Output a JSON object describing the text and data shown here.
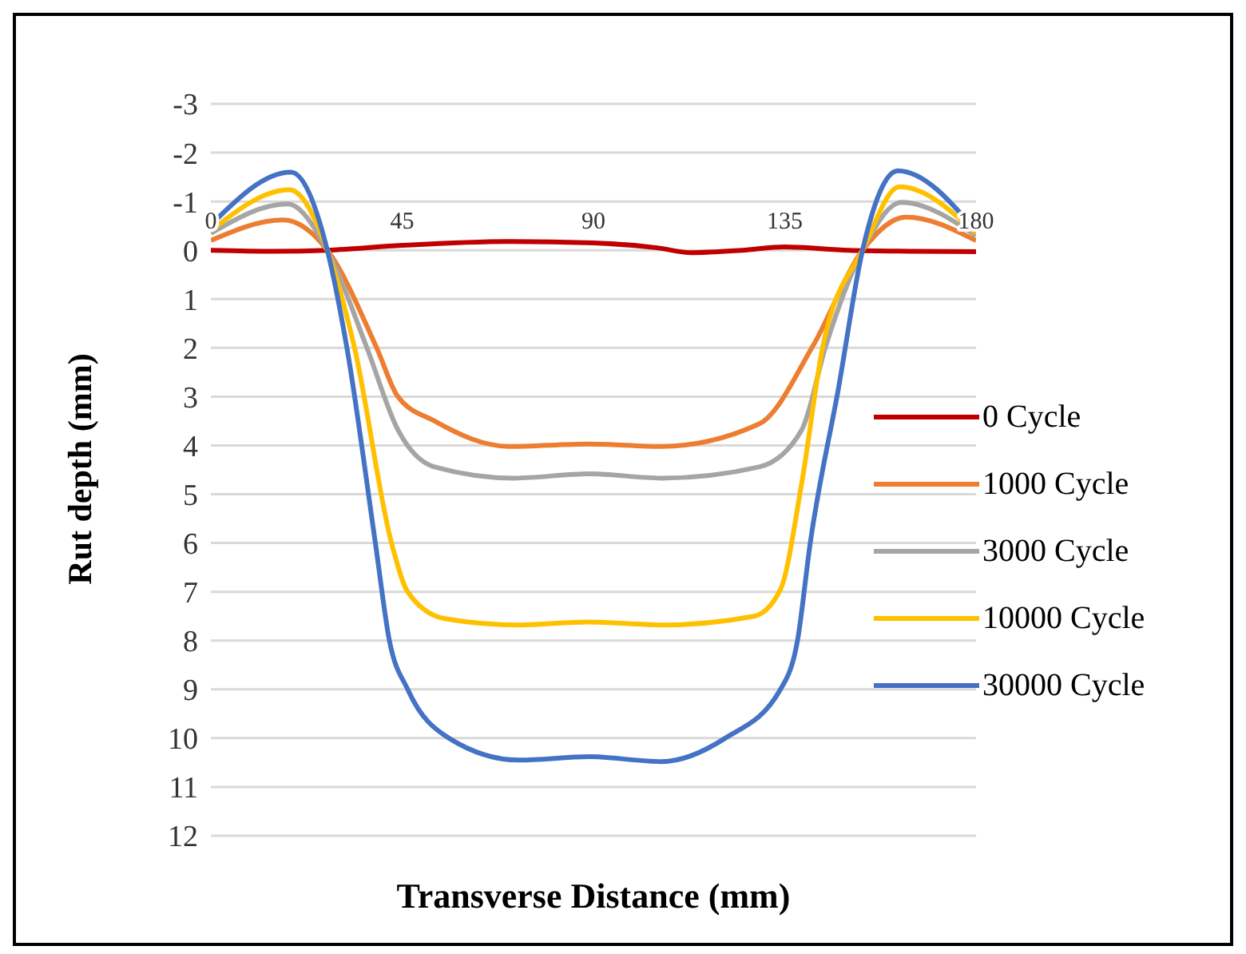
{
  "chart_data": {
    "type": "line",
    "xlabel": "Transverse Distance (mm)",
    "ylabel": "Rut depth (mm)",
    "xlim": [
      0,
      180
    ],
    "xticks": [
      0,
      45,
      90,
      135,
      180
    ],
    "ylim": [
      12,
      -3
    ],
    "yticks": [
      -3,
      -2,
      -1,
      0,
      1,
      2,
      3,
      4,
      5,
      6,
      7,
      8,
      9,
      10,
      11,
      12
    ],
    "grid": "y",
    "legend": "right",
    "marker": "none",
    "line_style": "solid",
    "series": [
      {
        "name": "0 Cycle",
        "color": "#c00000",
        "x": [
          0,
          15,
          27.4,
          45,
          70,
          90,
          105,
          113,
          125,
          135,
          150,
          165,
          180
        ],
        "values": [
          0,
          0.02,
          0,
          -0.1,
          -0.18,
          -0.15,
          -0.05,
          0.05,
          0,
          -0.07,
          0,
          0.02,
          0.03
        ]
      },
      {
        "name": "1000 Cycle",
        "color": "#ed7d31",
        "x": [
          0,
          17,
          27.4,
          39,
          44,
          52.6,
          70,
          89,
          106,
          129,
          141.7,
          153.3,
          163.5,
          180
        ],
        "values": [
          -0.2,
          -0.62,
          0,
          2,
          3,
          3.5,
          4.02,
          3.97,
          4.02,
          3.56,
          1.95,
          0,
          -0.68,
          -0.2
        ]
      },
      {
        "name": "3000 Cycle",
        "color": "#a5a5a5",
        "x": [
          0,
          18,
          27.4,
          36.5,
          44,
          52.6,
          71.4,
          89,
          106,
          129,
          139,
          144.7,
          153.3,
          162.5,
          180
        ],
        "values": [
          -0.35,
          -0.95,
          0,
          1.95,
          3.68,
          4.44,
          4.67,
          4.58,
          4.67,
          4.44,
          3.68,
          1.95,
          0,
          -0.98,
          -0.3
        ]
      },
      {
        "name": "10000 Cycle",
        "color": "#ffc000",
        "x": [
          0,
          18.5,
          27.4,
          33.8,
          42.5,
          46.3,
          55,
          72.5,
          89,
          106,
          127.8,
          134,
          139,
          144,
          153.3,
          162,
          180
        ],
        "values": [
          -0.4,
          -1.24,
          0,
          2,
          6,
          7,
          7.55,
          7.68,
          7.62,
          7.68,
          7.5,
          6.95,
          4.77,
          1.95,
          0,
          -1.3,
          -0.35
        ]
      },
      {
        "name": "30000 Cycle",
        "color": "#4472c4",
        "x": [
          0,
          18.8,
          27.4,
          32,
          38.7,
          42,
          46.3,
          56,
          72.5,
          89,
          106,
          121,
          134,
          138,
          141,
          147.7,
          153.3,
          161.6,
          180
        ],
        "values": [
          -0.52,
          -1.6,
          0,
          2,
          6,
          8,
          9,
          10,
          10.45,
          10.38,
          10.48,
          10,
          9,
          8,
          6,
          2.8,
          0,
          -1.63,
          -0.4
        ]
      }
    ]
  }
}
